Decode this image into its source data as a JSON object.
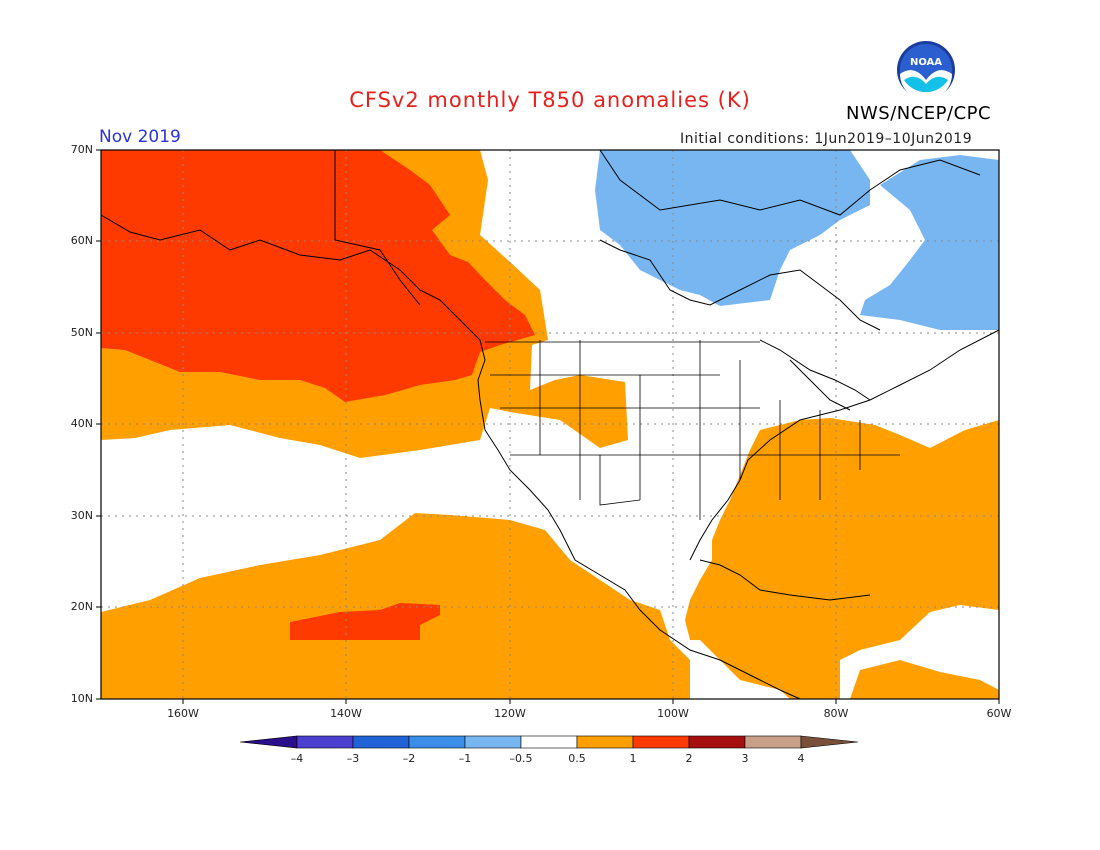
{
  "header": {
    "title": "CFSv2 monthly T850 anomalies (K)",
    "agency": "NWS/NCEP/CPC",
    "logo_text": "NOAA",
    "period": "Nov 2019",
    "initial_conditions": "Initial conditions: 1Jun2019–10Jun2019"
  },
  "map": {
    "lat_labels": [
      "70N",
      "60N",
      "50N",
      "40N",
      "30N",
      "20N",
      "10N"
    ],
    "lon_labels": [
      "160W",
      "140W",
      "120W",
      "100W",
      "80W",
      "60W"
    ]
  },
  "colorbar": {
    "labels": [
      "–4",
      "–3",
      "–2",
      "–1",
      "–0.5",
      "0.5",
      "1",
      "2",
      "3",
      "4"
    ],
    "colors": [
      "#2a0f8a",
      "#4b3fd0",
      "#1f63d6",
      "#3b8ee8",
      "#78b6f2",
      "#ffffff",
      "#ff9f00",
      "#ff3a00",
      "#a50f0f",
      "#c8a08a",
      "#7a4f3a"
    ]
  },
  "colors": {
    "warm1": "#ff9f00",
    "warm2": "#ff3a00",
    "cool1": "#78b6f2",
    "title": "#e8201d",
    "period": "#2a32d8"
  }
}
